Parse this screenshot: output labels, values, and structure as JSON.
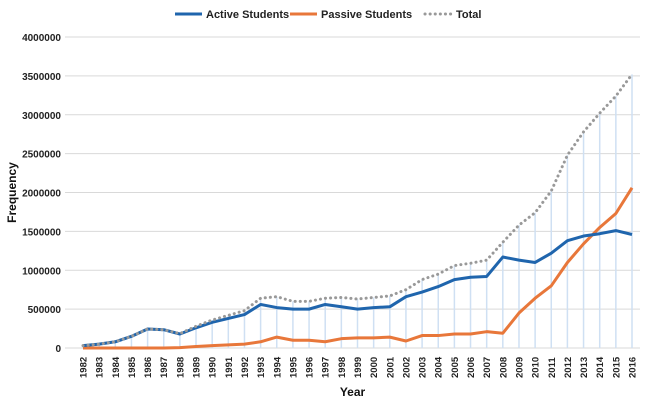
{
  "chart_data": {
    "type": "line",
    "title": "",
    "xlabel": "Year",
    "ylabel": "Frequency",
    "ylim": [
      0,
      4000000
    ],
    "yticks": [
      0,
      500000,
      1000000,
      1500000,
      2000000,
      2500000,
      3000000,
      3500000,
      4000000
    ],
    "grid": true,
    "legend_position": "top",
    "x": [
      "1982",
      "1983",
      "1984",
      "1985",
      "1986",
      "1987",
      "1988",
      "1989",
      "1990",
      "1991",
      "1992",
      "1993",
      "1994",
      "1995",
      "1996",
      "1997",
      "1998",
      "1999",
      "2000",
      "2001",
      "2002",
      "2003",
      "2004",
      "2005",
      "2006",
      "2007",
      "2008",
      "2009",
      "2010",
      "2011",
      "2012",
      "2013",
      "2014",
      "2015",
      "2016"
    ],
    "series": [
      {
        "name": "Active Students",
        "color": "#1f65ad",
        "style": "solid",
        "values": [
          30000,
          50000,
          80000,
          150000,
          245000,
          235000,
          180000,
          260000,
          330000,
          380000,
          430000,
          560000,
          520000,
          500000,
          500000,
          560000,
          530000,
          500000,
          520000,
          530000,
          660000,
          720000,
          790000,
          880000,
          910000,
          920000,
          1170000,
          1130000,
          1100000,
          1220000,
          1380000,
          1440000,
          1470000,
          1510000,
          1460000
        ]
      },
      {
        "name": "Passive Students",
        "color": "#e8773a",
        "style": "solid",
        "values": [
          0,
          0,
          0,
          0,
          0,
          0,
          5000,
          20000,
          30000,
          40000,
          50000,
          80000,
          140000,
          100000,
          100000,
          80000,
          120000,
          130000,
          130000,
          140000,
          90000,
          160000,
          160000,
          180000,
          180000,
          210000,
          190000,
          450000,
          640000,
          800000,
          1100000,
          1340000,
          1550000,
          1730000,
          2060000
        ]
      },
      {
        "name": "Total",
        "color": "#999999",
        "style": "dotted",
        "values": [
          30000,
          50000,
          80000,
          150000,
          245000,
          235000,
          185000,
          280000,
          360000,
          420000,
          480000,
          640000,
          660000,
          600000,
          600000,
          640000,
          650000,
          630000,
          650000,
          670000,
          750000,
          880000,
          950000,
          1060000,
          1090000,
          1130000,
          1360000,
          1580000,
          1740000,
          2020000,
          2480000,
          2780000,
          3020000,
          3240000,
          3520000
        ]
      }
    ]
  }
}
